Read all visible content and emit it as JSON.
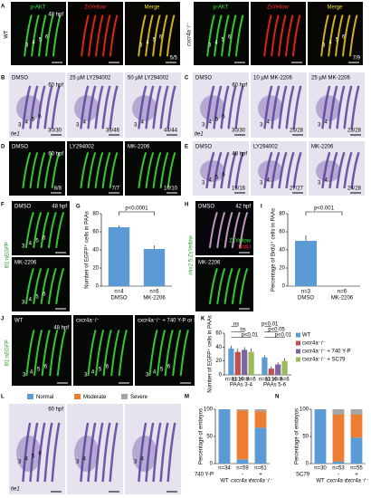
{
  "panels": {
    "A": {
      "letter": "A",
      "stage": "48 hpf",
      "arches": [
        "3",
        "4",
        "5",
        "6"
      ],
      "groups": [
        {
          "genotype": "WT",
          "channels": [
            "p-AKT",
            "ZsYellow",
            "Merge"
          ],
          "count": "5/5"
        },
        {
          "genotype": "cxcr4a⁻/⁻",
          "channels": [
            "p-AKT",
            "ZsYellow",
            "Merge"
          ],
          "count": "7/9"
        }
      ]
    },
    "B": {
      "letter": "B",
      "stage": "60 hpf",
      "marker": "tie1",
      "arches": [
        "3",
        "4",
        "5",
        "6"
      ],
      "conditions": [
        "DMSO",
        "25 µM LY294002",
        "50 µM LY294002"
      ],
      "counts": [
        "30/30",
        "36/46",
        "44/44"
      ]
    },
    "C": {
      "letter": "C",
      "stage": "60 hpf",
      "marker": "tie1",
      "arches": [
        "3",
        "4",
        "5",
        "6"
      ],
      "conditions": [
        "DMSO",
        "10 µM MK-2206",
        "25 µM MK-2206"
      ],
      "counts": [
        "30/30",
        "26/28",
        "28/28"
      ]
    },
    "D": {
      "letter": "D",
      "stage": "60 hpf",
      "conditions": [
        "DMSO",
        "LY294002",
        "MK-2206"
      ],
      "counts": [
        "8/8",
        "7/7",
        "10/10"
      ]
    },
    "E": {
      "letter": "E",
      "stage": "48 hpf",
      "arches": [
        "3",
        "4",
        "5",
        "6"
      ],
      "conditions": [
        "DMSO",
        "LY294002",
        "MK-2206"
      ],
      "counts": [
        "16/16",
        "27/27",
        "24/28"
      ]
    },
    "F": {
      "letter": "F",
      "line": "fli1:nEGFP",
      "stage": "48 hpf",
      "arches": [
        "3",
        "4",
        "5",
        "6"
      ],
      "conditions": [
        "DMSO",
        "MK-2206"
      ]
    },
    "H": {
      "letter": "H",
      "line": "nkx2.5:ZsYellow",
      "stage": "42 hpf",
      "channels": [
        "ZsYellow",
        "BrdU"
      ],
      "conditions": [
        "DMSO",
        "MK-2206"
      ]
    },
    "J": {
      "letter": "J",
      "line": "fli1:nEGFP",
      "stage": "48 hpf",
      "arches": [
        "3",
        "4",
        "5",
        "6"
      ],
      "conditions": [
        "WT",
        "cxcr4a⁻/⁻",
        "cxcr4a⁻/⁻ + 740 Y-P or SC79"
      ]
    },
    "L": {
      "letter": "L",
      "stage": "60 hpf",
      "marker": "tie1",
      "arches": [
        "3",
        "4",
        "5",
        "6"
      ]
    }
  },
  "chart_data": [
    {
      "type": "bar",
      "letter": "G",
      "ylabel": "Number of EGFP⁺ cells in PAAs",
      "categories": [
        "DMSO",
        "MK-2206"
      ],
      "n_labels": [
        "n=4",
        "n=6"
      ],
      "values": [
        65,
        41
      ],
      "errors": [
        2,
        4
      ],
      "color": "#5b9bd5",
      "ylim": [
        0,
        80
      ],
      "yticks": [
        0,
        20,
        40,
        60,
        80
      ],
      "annotations": [
        "p<0.0001"
      ]
    },
    {
      "type": "bar",
      "letter": "I",
      "ylabel": "Percentage of BrdU⁺ cells in PAAs",
      "categories": [
        "DMSO",
        "MK-2206"
      ],
      "n_labels": [
        "n=3",
        "n=6"
      ],
      "values": [
        50,
        0
      ],
      "errors": [
        6,
        0
      ],
      "color": "#5b9bd5",
      "ylim": [
        0,
        80
      ],
      "yticks": [
        0,
        20,
        40,
        60,
        80
      ],
      "annotations": [
        "p<0.001"
      ]
    },
    {
      "type": "grouped_bar",
      "letter": "K",
      "ylabel": "Number of EGFP⁺ cells in PAAs",
      "categories": [
        "PAAs 3-4",
        "PAAs 5-6"
      ],
      "n_labels": [
        [
          "n=11",
          "n=10",
          "n=8",
          "n=6"
        ],
        [
          "n=11",
          "n=10",
          "n=8",
          "n=6"
        ]
      ],
      "series": [
        {
          "name": "WT",
          "color": "#5b9bd5",
          "values": [
            38,
            25
          ],
          "errors": [
            4,
            3
          ]
        },
        {
          "name": "cxcr4a⁻/⁻",
          "color": "#c0504d",
          "values": [
            33,
            9
          ],
          "errors": [
            5,
            3
          ]
        },
        {
          "name": "cxcr4a⁻/⁻ + 740 Y-P",
          "color": "#8064a2",
          "values": [
            36,
            15
          ],
          "errors": [
            4,
            3
          ]
        },
        {
          "name": "cxcr4a⁻/⁻ + SC79",
          "color": "#9bbb59",
          "values": [
            33,
            20
          ],
          "errors": [
            5,
            4
          ]
        }
      ],
      "ylim": [
        0,
        60
      ],
      "yticks": [
        0,
        20,
        40,
        60
      ],
      "annotations": [
        [
          "ns",
          "ns",
          "p<0.01"
        ],
        [
          "p<0.01",
          "p<0.05",
          "p<0.01"
        ]
      ]
    },
    {
      "type": "stacked_bar",
      "letter": "M",
      "ylabel": "Percentage of embryos",
      "categories": [
        "WT",
        "cxcr4a⁻/⁻",
        "cxcr4a⁻/⁻"
      ],
      "n_labels": [
        "n=34",
        "n=59",
        "n=61"
      ],
      "treatment": "740 Y-P",
      "signs": [
        null,
        "-",
        "+"
      ],
      "series": [
        {
          "name": "Normal",
          "color": "#5b9bd5",
          "values": [
            100,
            8,
            66
          ]
        },
        {
          "name": "Moderate",
          "color": "#ed7d31",
          "values": [
            0,
            90,
            30
          ]
        },
        {
          "name": "Severe",
          "color": "#a5a5a5",
          "values": [
            0,
            2,
            4
          ]
        }
      ],
      "ylim": [
        0,
        100
      ],
      "yticks": [
        0,
        50,
        100
      ]
    },
    {
      "type": "stacked_bar",
      "letter": "N",
      "ylabel": "Percentage of embryos",
      "categories": [
        "WT",
        "cxcr4a⁻/⁻",
        "cxcr4a⁻/⁻"
      ],
      "n_labels": [
        "n=30",
        "n=53",
        "n=55"
      ],
      "treatment": "SC79",
      "signs": [
        null,
        "-",
        "+"
      ],
      "series": [
        {
          "name": "Normal",
          "color": "#5b9bd5",
          "values": [
            100,
            4,
            48
          ]
        },
        {
          "name": "Moderate",
          "color": "#ed7d31",
          "values": [
            0,
            86,
            42
          ]
        },
        {
          "name": "Severe",
          "color": "#a5a5a5",
          "values": [
            0,
            10,
            10
          ]
        }
      ],
      "ylim": [
        0,
        100
      ],
      "yticks": [
        0,
        50,
        100
      ]
    }
  ]
}
